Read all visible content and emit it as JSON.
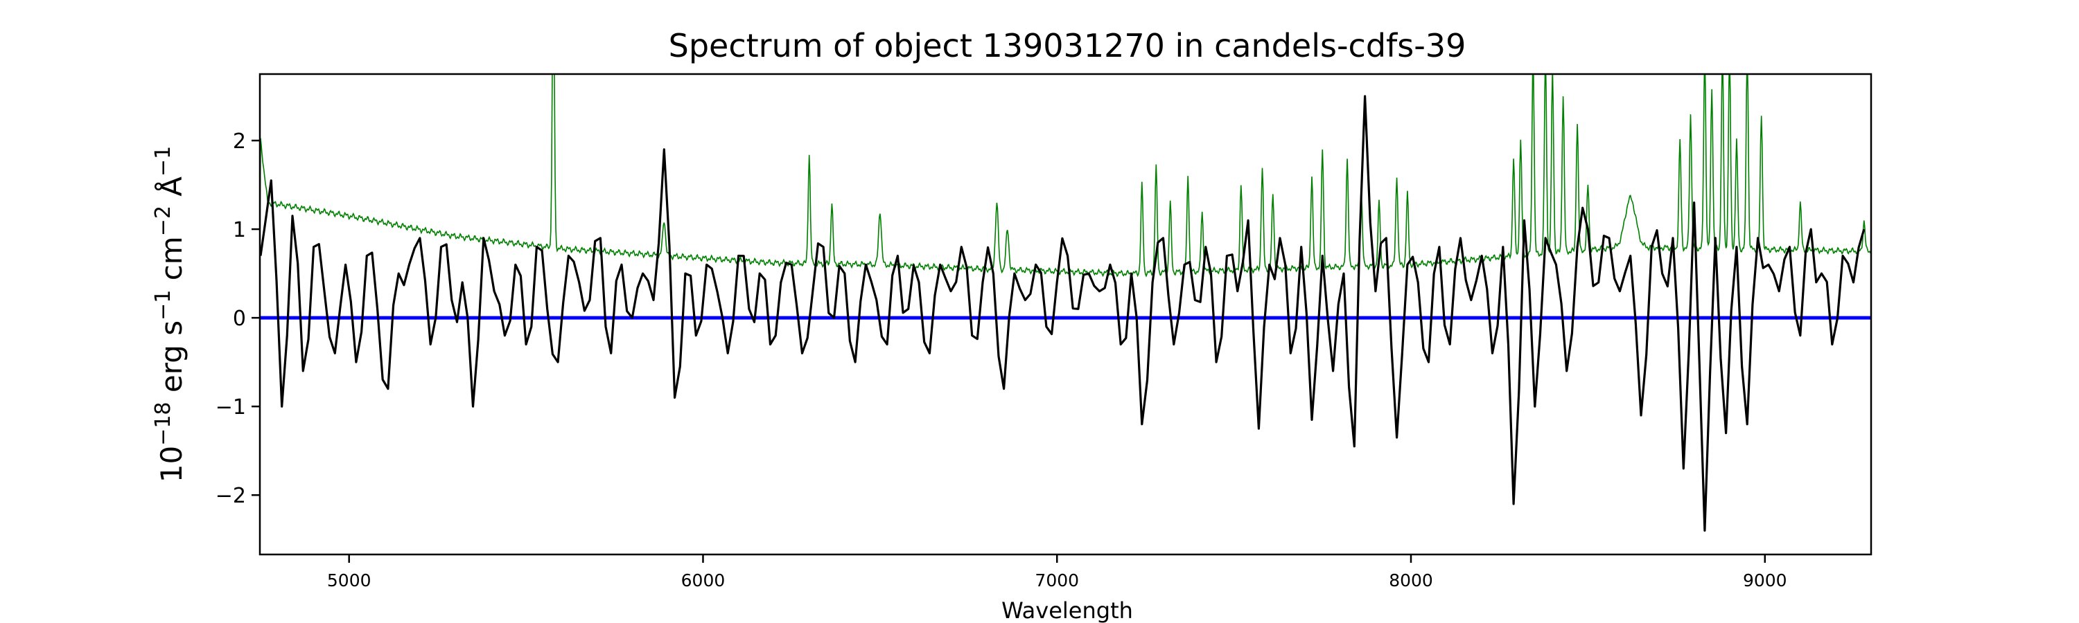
{
  "chart_data": {
    "type": "line",
    "title": "Spectrum of object 139031270 in candels-cdfs-39",
    "xlabel": "Wavelength",
    "ylabel_parts": [
      {
        "text": "10",
        "sup": false
      },
      {
        "text": "−18",
        "sup": true
      },
      {
        "text": " erg s",
        "sup": false
      },
      {
        "text": "−1",
        "sup": true
      },
      {
        "text": " cm",
        "sup": false
      },
      {
        "text": "−2",
        "sup": true
      },
      {
        "text": " Å",
        "sup": false
      },
      {
        "text": "−1",
        "sup": true
      }
    ],
    "xlim": [
      4748,
      9300
    ],
    "ylim": [
      -2.67,
      2.75
    ],
    "xticks": [
      5000,
      6000,
      7000,
      8000,
      9000
    ],
    "yticks": [
      -2,
      -1,
      0,
      1,
      2
    ],
    "ytick_labels": [
      "−2",
      "−1",
      "0",
      "1",
      "2"
    ],
    "grid": false,
    "colors": {
      "flux": "#000000",
      "model": "#008000",
      "zero": "#0000ff"
    },
    "series": [
      {
        "name": "flux",
        "x_start": 4750,
        "x_step": 30,
        "values": [
          0.7,
          1.55,
          -1.0,
          1.15,
          -0.6,
          0.8,
          0.3,
          -0.4,
          0.6,
          -0.5,
          0.7,
          0.1,
          -0.8,
          0.5,
          0.6,
          0.9,
          -0.3,
          0.8,
          0.2,
          0.4,
          -1.0,
          0.9,
          0.3,
          -0.2,
          0.6,
          -0.3,
          0.8,
          0.1,
          -0.5,
          0.7,
          0.4,
          0.2,
          0.9,
          -0.4,
          0.6,
          0.0,
          0.5,
          0.2,
          1.9,
          -0.9,
          0.5,
          -0.2,
          0.6,
          0.3,
          -0.4,
          0.7,
          0.1,
          0.5,
          -0.3,
          0.4,
          0.6,
          -0.4,
          0.3,
          0.8,
          0.0,
          0.5,
          -0.5,
          0.6,
          0.2,
          -0.3,
          0.7,
          0.1,
          0.4,
          -0.4,
          0.6,
          0.3,
          0.8,
          -0.2,
          0.4,
          0.5,
          -0.8,
          0.5,
          0.2,
          0.6,
          -0.1,
          0.4,
          0.7,
          0.1,
          0.5,
          0.3,
          0.6,
          -0.3,
          0.5,
          -1.2,
          0.4,
          0.9,
          -0.3,
          0.6,
          0.2,
          0.8,
          -0.5,
          0.7,
          0.3,
          1.1,
          -1.25,
          0.6,
          0.9,
          -0.4,
          0.8,
          -1.15,
          0.7,
          -0.6,
          0.5,
          -1.45,
          2.5,
          0.3,
          0.9,
          -1.35,
          0.6,
          0.4,
          -0.5,
          0.8,
          -0.3,
          0.9,
          0.2,
          0.7,
          -0.4,
          0.8,
          -2.1,
          1.1,
          -1.0,
          0.9,
          0.6,
          -0.6,
          0.8,
          1.0,
          0.4,
          0.9,
          0.3,
          0.7,
          -1.1,
          0.8,
          0.5,
          0.9,
          -1.7,
          1.3,
          -2.4,
          0.9,
          -1.3,
          0.8,
          -1.2,
          0.9,
          0.6,
          0.3,
          0.8,
          -0.2,
          1.0,
          0.5,
          -0.3,
          0.7,
          0.4,
          1.0
        ]
      },
      {
        "name": "model",
        "continuum": [
          [
            4750,
            2.0
          ],
          [
            4770,
            1.3
          ],
          [
            5000,
            1.15
          ],
          [
            5300,
            0.92
          ],
          [
            5600,
            0.78
          ],
          [
            5900,
            0.7
          ],
          [
            6200,
            0.62
          ],
          [
            6500,
            0.6
          ],
          [
            6800,
            0.55
          ],
          [
            7200,
            0.5
          ],
          [
            7600,
            0.55
          ],
          [
            8000,
            0.6
          ],
          [
            8300,
            0.7
          ],
          [
            8600,
            0.8
          ],
          [
            9300,
            0.75
          ]
        ],
        "lines": [
          [
            5577,
            4.0,
            3
          ],
          [
            5890,
            1.1,
            4
          ],
          [
            6300,
            1.85,
            3
          ],
          [
            6364,
            1.3,
            3
          ],
          [
            6500,
            1.2,
            4
          ],
          [
            6830,
            1.3,
            4
          ],
          [
            6860,
            1.0,
            4
          ],
          [
            7240,
            1.5,
            3
          ],
          [
            7280,
            1.7,
            3
          ],
          [
            7320,
            1.3,
            3
          ],
          [
            7370,
            1.6,
            3
          ],
          [
            7410,
            1.2,
            3
          ],
          [
            7520,
            1.5,
            3
          ],
          [
            7580,
            1.7,
            3
          ],
          [
            7610,
            1.4,
            3
          ],
          [
            7720,
            1.6,
            3
          ],
          [
            7750,
            1.9,
            3
          ],
          [
            7820,
            1.8,
            3
          ],
          [
            7860,
            1.4,
            3
          ],
          [
            7910,
            1.3,
            3
          ],
          [
            7960,
            1.6,
            3
          ],
          [
            7990,
            1.4,
            3
          ],
          [
            8290,
            1.8,
            3
          ],
          [
            8310,
            2.0,
            3
          ],
          [
            8345,
            3.0,
            3
          ],
          [
            8380,
            3.0,
            3
          ],
          [
            8400,
            2.8,
            3
          ],
          [
            8430,
            2.5,
            3
          ],
          [
            8470,
            2.2,
            3
          ],
          [
            8500,
            1.5,
            3
          ],
          [
            8620,
            1.35,
            15
          ],
          [
            8760,
            2.0,
            3
          ],
          [
            8790,
            2.3,
            3
          ],
          [
            8830,
            3.0,
            3
          ],
          [
            8850,
            2.6,
            3
          ],
          [
            8880,
            3.0,
            3
          ],
          [
            8900,
            3.0,
            3
          ],
          [
            8920,
            2.0,
            3
          ],
          [
            8950,
            3.0,
            3
          ],
          [
            8990,
            2.3,
            3
          ],
          [
            9100,
            1.3,
            3
          ],
          [
            9280,
            1.1,
            3
          ]
        ]
      },
      {
        "name": "zero",
        "y": 0
      }
    ]
  }
}
